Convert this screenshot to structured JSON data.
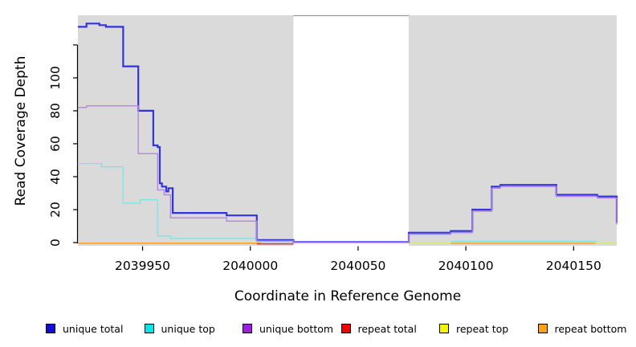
{
  "chart_data": {
    "type": "line",
    "step_style": "step-after",
    "title": "",
    "xlabel": "Coordinate in Reference Genome",
    "ylabel": "Read Coverage Depth",
    "xlim": [
      2039920,
      2040170
    ],
    "ylim": [
      0,
      138
    ],
    "x_ticks": [
      2039950,
      2040000,
      2040050,
      2040100,
      2040150
    ],
    "y_ticks": [
      0,
      20,
      40,
      60,
      80,
      100
    ],
    "y_ticks_unlabeled": [
      120
    ],
    "grid": "off",
    "plot_bg_color": "#DADADA",
    "masked_region": {
      "from": 2040020,
      "to": 2040073.5,
      "color": "#FFFFFF",
      "border_color": "#999999"
    },
    "legend_position": "bottom",
    "draw_order": [
      4,
      5,
      3,
      1,
      0,
      2
    ],
    "series": [
      {
        "name": "unique total",
        "color": "#3333DD",
        "legend_color": "#0F0FD6",
        "line_width": 2.2,
        "segments": [
          [
            [
              2039920,
              131
            ],
            [
              2039924,
              133
            ],
            [
              2039930,
              132
            ],
            [
              2039933,
              131
            ],
            [
              2039941,
              107
            ],
            [
              2039948,
              80
            ],
            [
              2039955,
              59
            ],
            [
              2039957,
              58
            ],
            [
              2039958,
              36
            ],
            [
              2039959,
              34
            ],
            [
              2039961,
              31
            ],
            [
              2039962,
              33
            ],
            [
              2039964,
              18
            ],
            [
              2039989,
              16.5
            ],
            [
              2040003,
              1.5
            ],
            [
              2040020,
              0.3
            ],
            [
              2040073.5,
              6
            ],
            [
              2040093,
              7
            ],
            [
              2040103,
              20
            ],
            [
              2040112,
              34
            ],
            [
              2040116,
              35
            ],
            [
              2040142,
              29
            ],
            [
              2040161,
              28
            ],
            [
              2040170,
              12
            ]
          ]
        ]
      },
      {
        "name": "unique top",
        "color": "#79E5E5",
        "legend_color": "#00E8E8",
        "line_width": 1.3,
        "segments": [
          [
            [
              2039920,
              48
            ],
            [
              2039931,
              46
            ],
            [
              2039941,
              24
            ],
            [
              2039949,
              26
            ],
            [
              2039957,
              4
            ],
            [
              2039963,
              2.5
            ],
            [
              2040003,
              0.5
            ],
            [
              2040018,
              0.5
            ]
          ],
          [
            [
              2040093,
              0.8
            ],
            [
              2040161,
              0.8
            ]
          ]
        ]
      },
      {
        "name": "unique bottom",
        "color": "#B585DE",
        "legend_color": "#9C1FE8",
        "line_width": 1.4,
        "segments": [
          [
            [
              2039920,
              82
            ],
            [
              2039924,
              83
            ],
            [
              2039948,
              54
            ],
            [
              2039957,
              32
            ],
            [
              2039960,
              29
            ],
            [
              2039963,
              15
            ],
            [
              2039989,
              13
            ],
            [
              2040003,
              1
            ],
            [
              2040020,
              0
            ],
            [
              2040073.5,
              5
            ],
            [
              2040093,
              6
            ],
            [
              2040103,
              19
            ],
            [
              2040112,
              33
            ],
            [
              2040116,
              34
            ],
            [
              2040142,
              28
            ],
            [
              2040161,
              27
            ],
            [
              2040170,
              11
            ]
          ]
        ]
      },
      {
        "name": "repeat total",
        "color": "#E03030",
        "legend_color": "#F00000",
        "line_width": 1.5,
        "segments": [
          [
            [
              2040003,
              -0.8
            ],
            [
              2040020,
              -0.8
            ]
          ]
        ]
      },
      {
        "name": "repeat top",
        "color": "#CFE87A",
        "legend_color": "#F5F500",
        "line_width": 1.3,
        "segments": [
          [
            [
              2040073.5,
              -0.2
            ],
            [
              2040170,
              -0.2
            ]
          ]
        ]
      },
      {
        "name": "repeat bottom",
        "color": "#FFA420",
        "legend_color": "#FFA500",
        "line_width": 1.6,
        "segments": [
          [
            [
              2039920,
              -0.4
            ],
            [
              2040005,
              -0.4
            ]
          ],
          [
            [
              2040093,
              -0.4
            ],
            [
              2040160,
              -0.4
            ]
          ]
        ]
      }
    ]
  }
}
